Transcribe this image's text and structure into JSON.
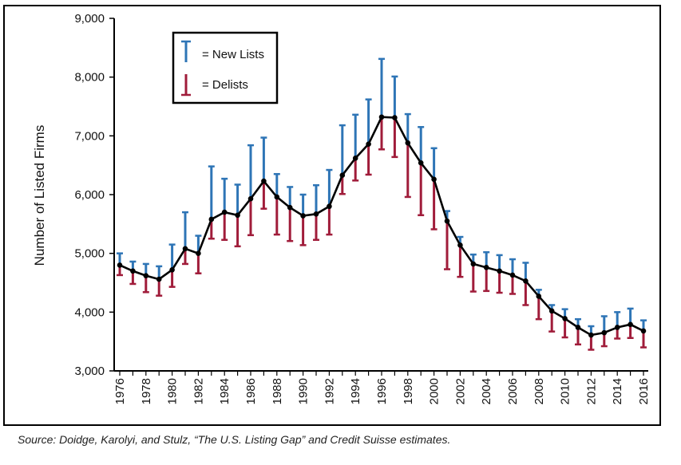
{
  "chart_data": {
    "type": "line",
    "title": "",
    "ylabel": "Number of Listed Firms",
    "xlabel": "",
    "ylim": [
      3000,
      9000
    ],
    "yticks": [
      3000,
      4000,
      5000,
      6000,
      7000,
      8000,
      9000
    ],
    "ytick_labels": [
      "3,000",
      "4,000",
      "5,000",
      "6,000",
      "7,000",
      "8,000",
      "9,000"
    ],
    "x": [
      1976,
      1977,
      1978,
      1979,
      1980,
      1981,
      1982,
      1983,
      1984,
      1985,
      1986,
      1987,
      1988,
      1989,
      1990,
      1991,
      1992,
      1993,
      1994,
      1995,
      1996,
      1997,
      1998,
      1999,
      2000,
      2001,
      2002,
      2003,
      2004,
      2005,
      2006,
      2007,
      2008,
      2009,
      2010,
      2011,
      2012,
      2013,
      2014,
      2015,
      2016
    ],
    "xtick_labels": [
      "1976",
      "1978",
      "1980",
      "1982",
      "1984",
      "1986",
      "1988",
      "1990",
      "1992",
      "1994",
      "1996",
      "1998",
      "2000",
      "2002",
      "2004",
      "2006",
      "2008",
      "2010",
      "2012",
      "2014",
      "2016"
    ],
    "series": [
      {
        "name": "Listed Firms",
        "values": [
          4800,
          4700,
          4620,
          4560,
          4720,
          5080,
          5000,
          5580,
          5700,
          5650,
          5930,
          6230,
          5960,
          5780,
          5640,
          5670,
          5800,
          6330,
          6620,
          6860,
          7320,
          7310,
          6880,
          6540,
          6260,
          5550,
          5140,
          4820,
          4760,
          4700,
          4630,
          4530,
          4270,
          4020,
          3890,
          3740,
          3610,
          3650,
          3740,
          3790,
          3680
        ]
      },
      {
        "name": "New Lists",
        "values": [
          5000,
          4860,
          4820,
          4780,
          5150,
          5700,
          5300,
          6480,
          6270,
          6170,
          6840,
          6970,
          6350,
          6130,
          6000,
          6160,
          6420,
          7180,
          7360,
          7620,
          8310,
          8010,
          7370,
          7150,
          6790,
          5720,
          5280,
          4980,
          5020,
          4970,
          4900,
          4840,
          4380,
          4120,
          4050,
          3880,
          3760,
          3930,
          4000,
          4060,
          3860
        ]
      },
      {
        "name": "Delists",
        "values": [
          4630,
          4480,
          4340,
          4280,
          4430,
          4820,
          4660,
          5250,
          5230,
          5120,
          5310,
          5760,
          5320,
          5210,
          5140,
          5230,
          5320,
          6010,
          6240,
          6340,
          6770,
          6640,
          5960,
          5650,
          5410,
          4730,
          4600,
          4350,
          4360,
          4330,
          4310,
          4120,
          3880,
          3670,
          3570,
          3450,
          3360,
          3420,
          3550,
          3560,
          3400
        ]
      }
    ],
    "legend": {
      "position": "top-left",
      "items": [
        {
          "label": "= New Lists",
          "color": "#2e75b6"
        },
        {
          "label": "= Delists",
          "color": "#a01c3a"
        }
      ]
    },
    "colors": {
      "line": "#000000",
      "new_lists": "#2e75b6",
      "delists": "#a01c3a"
    },
    "grid": false
  },
  "source_note": "Source: Doidge, Karolyi, and Stulz, “The U.S. Listing Gap” and Credit Suisse estimates."
}
